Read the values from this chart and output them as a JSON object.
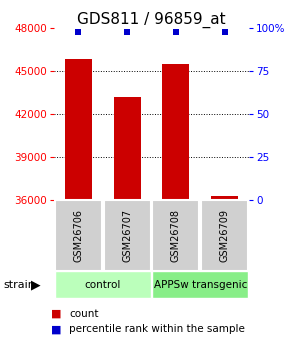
{
  "title": "GDS811 / 96859_at",
  "samples": [
    "GSM26706",
    "GSM26707",
    "GSM26708",
    "GSM26709"
  ],
  "counts": [
    45800,
    43200,
    45500,
    36300
  ],
  "percentiles": [
    100,
    100,
    100,
    100
  ],
  "groups": [
    {
      "label": "control",
      "samples": [
        0,
        1
      ],
      "color": "#bbffbb"
    },
    {
      "label": "APPSw transgenic",
      "samples": [
        2,
        3
      ],
      "color": "#88ee88"
    }
  ],
  "bar_color": "#cc0000",
  "percentile_color": "#0000cc",
  "ylim_left": [
    36000,
    48000
  ],
  "ylim_right": [
    0,
    100
  ],
  "yticks_left": [
    36000,
    39000,
    42000,
    45000,
    48000
  ],
  "yticks_right": [
    0,
    25,
    50,
    75,
    100
  ],
  "bar_width": 0.55,
  "legend_count_label": "count",
  "legend_pct_label": "percentile rank within the sample",
  "title_fontsize": 11,
  "tick_fontsize": 7.5,
  "strain_label": "strain"
}
